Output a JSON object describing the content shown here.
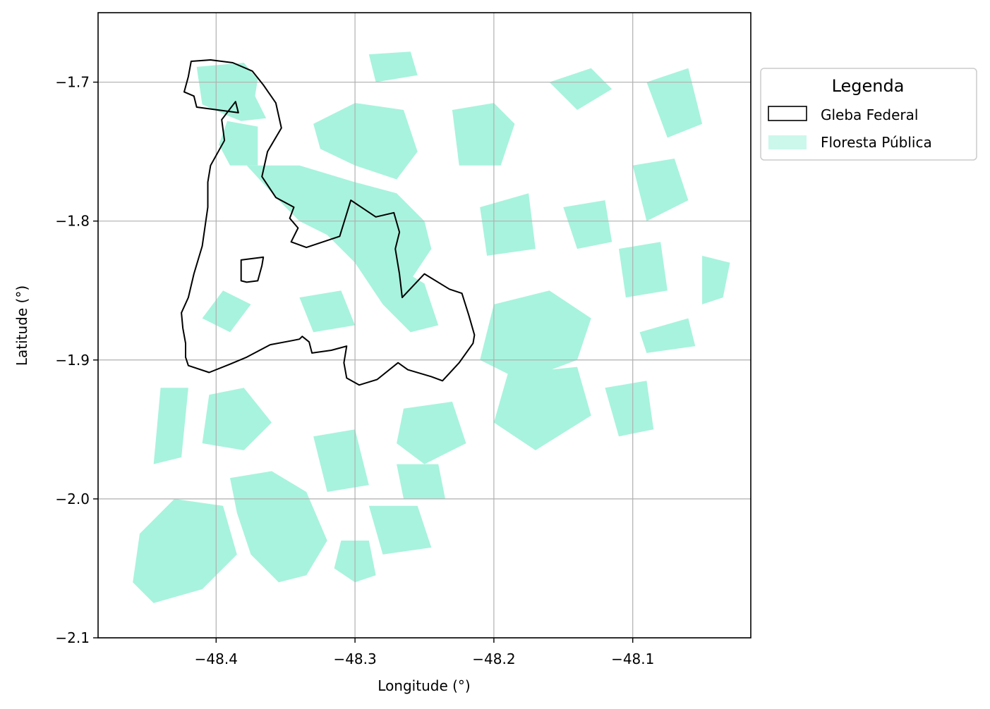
{
  "chart_data": {
    "type": "map",
    "xlabel": "Longitude (°)",
    "ylabel": "Latitude (°)",
    "xlim": [
      -48.485,
      -48.015
    ],
    "ylim": [
      -2.1,
      -1.65
    ],
    "x_ticks": [
      -48.4,
      -48.3,
      -48.2,
      -48.1
    ],
    "x_tick_labels": [
      "−48.4",
      "−48.3",
      "−48.2",
      "−48.1"
    ],
    "y_ticks": [
      -1.7,
      -1.8,
      -1.9,
      -2.0,
      -2.1
    ],
    "y_tick_labels": [
      "−1.7",
      "−1.8",
      "−1.9",
      "−2.0",
      "−2.1"
    ],
    "grid": true,
    "legend": {
      "title": "Legenda",
      "placement": "outside-upper-right",
      "entries": [
        {
          "label": "Gleba Federal",
          "style": "outline",
          "color": "#000000"
        },
        {
          "label": "Floresta Pública",
          "style": "fill",
          "color": "#a8f3dd"
        }
      ]
    },
    "layers": [
      {
        "name": "Gleba Federal",
        "type": "polygon-outline",
        "color": "#000000",
        "polygons": [
          [
            [
              -48.418,
              -1.685
            ],
            [
              -48.404,
              -1.684
            ],
            [
              -48.388,
              -1.686
            ],
            [
              -48.374,
              -1.692
            ],
            [
              -48.366,
              -1.702
            ],
            [
              -48.357,
              -1.715
            ],
            [
              -48.353,
              -1.733
            ],
            [
              -48.363,
              -1.75
            ],
            [
              -48.367,
              -1.768
            ],
            [
              -48.357,
              -1.783
            ],
            [
              -48.344,
              -1.79
            ],
            [
              -48.347,
              -1.798
            ],
            [
              -48.341,
              -1.805
            ],
            [
              -48.346,
              -1.815
            ],
            [
              -48.335,
              -1.819
            ],
            [
              -48.311,
              -1.811
            ],
            [
              -48.303,
              -1.785
            ],
            [
              -48.285,
              -1.797
            ],
            [
              -48.272,
              -1.794
            ],
            [
              -48.268,
              -1.808
            ],
            [
              -48.271,
              -1.82
            ],
            [
              -48.268,
              -1.838
            ],
            [
              -48.266,
              -1.855
            ],
            [
              -48.25,
              -1.838
            ],
            [
              -48.232,
              -1.849
            ],
            [
              -48.223,
              -1.852
            ],
            [
              -48.218,
              -1.868
            ],
            [
              -48.214,
              -1.882
            ],
            [
              -48.215,
              -1.888
            ],
            [
              -48.225,
              -1.902
            ],
            [
              -48.237,
              -1.915
            ],
            [
              -48.245,
              -1.912
            ],
            [
              -48.262,
              -1.907
            ],
            [
              -48.269,
              -1.902
            ],
            [
              -48.284,
              -1.914
            ],
            [
              -48.297,
              -1.918
            ],
            [
              -48.306,
              -1.913
            ],
            [
              -48.308,
              -1.902
            ],
            [
              -48.306,
              -1.89
            ],
            [
              -48.317,
              -1.893
            ],
            [
              -48.331,
              -1.895
            ],
            [
              -48.333,
              -1.887
            ],
            [
              -48.338,
              -1.883
            ],
            [
              -48.34,
              -1.885
            ],
            [
              -48.345,
              -1.886
            ],
            [
              -48.361,
              -1.889
            ],
            [
              -48.378,
              -1.898
            ],
            [
              -48.39,
              -1.903
            ],
            [
              -48.405,
              -1.909
            ],
            [
              -48.42,
              -1.904
            ],
            [
              -48.422,
              -1.898
            ],
            [
              -48.422,
              -1.888
            ],
            [
              -48.424,
              -1.877
            ],
            [
              -48.425,
              -1.866
            ],
            [
              -48.42,
              -1.855
            ],
            [
              -48.416,
              -1.838
            ],
            [
              -48.41,
              -1.818
            ],
            [
              -48.406,
              -1.79
            ],
            [
              -48.406,
              -1.772
            ],
            [
              -48.404,
              -1.76
            ],
            [
              -48.394,
              -1.742
            ],
            [
              -48.396,
              -1.727
            ],
            [
              -48.386,
              -1.714
            ],
            [
              -48.384,
              -1.722
            ],
            [
              -48.414,
              -1.718
            ],
            [
              -48.416,
              -1.71
            ],
            [
              -48.423,
              -1.707
            ],
            [
              -48.42,
              -1.696
            ]
          ],
          [
            [
              -48.382,
              -1.828
            ],
            [
              -48.366,
              -1.826
            ],
            [
              -48.367,
              -1.832
            ],
            [
              -48.37,
              -1.843
            ],
            [
              -48.378,
              -1.844
            ],
            [
              -48.382,
              -1.843
            ],
            [
              -48.382,
              -1.835
            ]
          ]
        ]
      },
      {
        "name": "Floresta Pública",
        "type": "polygon-fill",
        "color": "#a8f3dd",
        "polygons": [
          [
            [
              -48.414,
              -1.689
            ],
            [
              -48.38,
              -1.686
            ],
            [
              -48.37,
              -1.698
            ],
            [
              -48.372,
              -1.71
            ],
            [
              -48.364,
              -1.726
            ],
            [
              -48.382,
              -1.728
            ],
            [
              -48.392,
              -1.724
            ],
            [
              -48.41,
              -1.716
            ]
          ],
          [
            [
              -48.392,
              -1.728
            ],
            [
              -48.37,
              -1.732
            ],
            [
              -48.37,
              -1.76
            ],
            [
              -48.39,
              -1.76
            ],
            [
              -48.398,
              -1.745
            ]
          ],
          [
            [
              -48.378,
              -1.76
            ],
            [
              -48.34,
              -1.76
            ],
            [
              -48.3,
              -1.772
            ],
            [
              -48.27,
              -1.78
            ],
            [
              -48.25,
              -1.8
            ],
            [
              -48.245,
              -1.82
            ],
            [
              -48.265,
              -1.85
            ],
            [
              -48.3,
              -1.83
            ],
            [
              -48.32,
              -1.81
            ],
            [
              -48.34,
              -1.8
            ],
            [
              -48.355,
              -1.785
            ]
          ],
          [
            [
              -48.33,
              -1.73
            ],
            [
              -48.3,
              -1.715
            ],
            [
              -48.265,
              -1.72
            ],
            [
              -48.255,
              -1.75
            ],
            [
              -48.27,
              -1.77
            ],
            [
              -48.3,
              -1.76
            ],
            [
              -48.325,
              -1.748
            ]
          ],
          [
            [
              -48.23,
              -1.72
            ],
            [
              -48.2,
              -1.715
            ],
            [
              -48.185,
              -1.73
            ],
            [
              -48.195,
              -1.76
            ],
            [
              -48.225,
              -1.76
            ]
          ],
          [
            [
              -48.3,
              -1.83
            ],
            [
              -48.28,
              -1.86
            ],
            [
              -48.26,
              -1.88
            ],
            [
              -48.24,
              -1.875
            ],
            [
              -48.25,
              -1.845
            ],
            [
              -48.275,
              -1.83
            ]
          ],
          [
            [
              -48.2,
              -1.86
            ],
            [
              -48.16,
              -1.85
            ],
            [
              -48.13,
              -1.87
            ],
            [
              -48.14,
              -1.9
            ],
            [
              -48.18,
              -1.915
            ],
            [
              -48.21,
              -1.9
            ]
          ],
          [
            [
              -48.19,
              -1.91
            ],
            [
              -48.14,
              -1.905
            ],
            [
              -48.13,
              -1.94
            ],
            [
              -48.17,
              -1.965
            ],
            [
              -48.2,
              -1.945
            ]
          ],
          [
            [
              -48.405,
              -1.925
            ],
            [
              -48.38,
              -1.92
            ],
            [
              -48.36,
              -1.945
            ],
            [
              -48.38,
              -1.965
            ],
            [
              -48.41,
              -1.96
            ]
          ],
          [
            [
              -48.39,
              -1.985
            ],
            [
              -48.36,
              -1.98
            ],
            [
              -48.335,
              -1.995
            ],
            [
              -48.32,
              -2.03
            ],
            [
              -48.335,
              -2.055
            ],
            [
              -48.355,
              -2.06
            ],
            [
              -48.375,
              -2.04
            ],
            [
              -48.385,
              -2.01
            ]
          ],
          [
            [
              -48.43,
              -2.0
            ],
            [
              -48.395,
              -2.005
            ],
            [
              -48.385,
              -2.04
            ],
            [
              -48.41,
              -2.065
            ],
            [
              -48.445,
              -2.075
            ],
            [
              -48.46,
              -2.06
            ],
            [
              -48.455,
              -2.025
            ]
          ],
          [
            [
              -48.31,
              -2.03
            ],
            [
              -48.29,
              -2.03
            ],
            [
              -48.285,
              -2.055
            ],
            [
              -48.3,
              -2.06
            ],
            [
              -48.315,
              -2.05
            ]
          ],
          [
            [
              -48.29,
              -2.005
            ],
            [
              -48.255,
              -2.005
            ],
            [
              -48.245,
              -2.035
            ],
            [
              -48.28,
              -2.04
            ]
          ],
          [
            [
              -48.265,
              -1.935
            ],
            [
              -48.23,
              -1.93
            ],
            [
              -48.22,
              -1.96
            ],
            [
              -48.25,
              -1.975
            ],
            [
              -48.27,
              -1.96
            ]
          ],
          [
            [
              -48.34,
              -1.855
            ],
            [
              -48.31,
              -1.85
            ],
            [
              -48.3,
              -1.875
            ],
            [
              -48.33,
              -1.88
            ]
          ],
          [
            [
              -48.395,
              -1.85
            ],
            [
              -48.375,
              -1.86
            ],
            [
              -48.39,
              -1.88
            ],
            [
              -48.41,
              -1.87
            ]
          ],
          [
            [
              -48.1,
              -1.76
            ],
            [
              -48.07,
              -1.755
            ],
            [
              -48.06,
              -1.785
            ],
            [
              -48.09,
              -1.8
            ]
          ],
          [
            [
              -48.11,
              -1.82
            ],
            [
              -48.08,
              -1.815
            ],
            [
              -48.075,
              -1.85
            ],
            [
              -48.105,
              -1.855
            ]
          ],
          [
            [
              -48.095,
              -1.88
            ],
            [
              -48.06,
              -1.87
            ],
            [
              -48.055,
              -1.89
            ],
            [
              -48.09,
              -1.895
            ]
          ],
          [
            [
              -48.12,
              -1.92
            ],
            [
              -48.09,
              -1.915
            ],
            [
              -48.085,
              -1.95
            ],
            [
              -48.11,
              -1.955
            ]
          ],
          [
            [
              -48.05,
              -1.825
            ],
            [
              -48.03,
              -1.83
            ],
            [
              -48.035,
              -1.855
            ],
            [
              -48.05,
              -1.86
            ]
          ],
          [
            [
              -48.16,
              -1.7
            ],
            [
              -48.13,
              -1.69
            ],
            [
              -48.115,
              -1.705
            ],
            [
              -48.14,
              -1.72
            ]
          ],
          [
            [
              -48.09,
              -1.7
            ],
            [
              -48.06,
              -1.69
            ],
            [
              -48.05,
              -1.73
            ],
            [
              -48.075,
              -1.74
            ]
          ],
          [
            [
              -48.29,
              -1.68
            ],
            [
              -48.26,
              -1.678
            ],
            [
              -48.255,
              -1.695
            ],
            [
              -48.285,
              -1.7
            ]
          ],
          [
            [
              -48.21,
              -1.79
            ],
            [
              -48.175,
              -1.78
            ],
            [
              -48.17,
              -1.82
            ],
            [
              -48.205,
              -1.825
            ]
          ],
          [
            [
              -48.15,
              -1.79
            ],
            [
              -48.12,
              -1.785
            ],
            [
              -48.115,
              -1.815
            ],
            [
              -48.14,
              -1.82
            ]
          ],
          [
            [
              -48.44,
              -1.92
            ],
            [
              -48.42,
              -1.92
            ],
            [
              -48.425,
              -1.97
            ],
            [
              -48.445,
              -1.975
            ]
          ],
          [
            [
              -48.33,
              -1.955
            ],
            [
              -48.3,
              -1.95
            ],
            [
              -48.29,
              -1.99
            ],
            [
              -48.32,
              -1.995
            ]
          ],
          [
            [
              -48.27,
              -1.975
            ],
            [
              -48.24,
              -1.975
            ],
            [
              -48.235,
              -2.0
            ],
            [
              -48.265,
              -2.0
            ]
          ]
        ]
      }
    ]
  }
}
